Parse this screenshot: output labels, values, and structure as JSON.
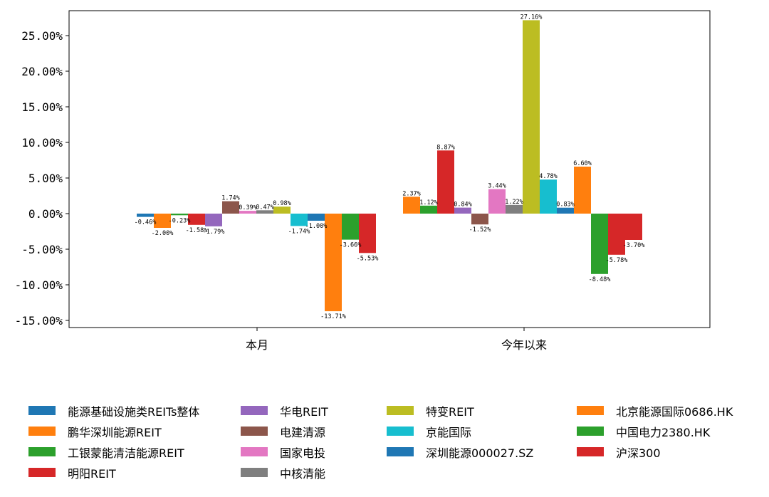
{
  "chart_data": {
    "type": "bar",
    "categories": [
      "本月",
      "今年以来"
    ],
    "ylim": [
      -0.16,
      0.285
    ],
    "yticks": [
      "-15.00%",
      "-10.00%",
      "-5.00%",
      "0.00%",
      "5.00%",
      "10.00%",
      "15.00%",
      "20.00%",
      "25.00%"
    ],
    "ytick_values": [
      -0.15,
      -0.1,
      -0.05,
      0.0,
      0.05,
      0.1,
      0.15,
      0.2,
      0.25
    ],
    "grid": false,
    "legend_placement": "bottom",
    "series": [
      {
        "name": "能源基础设施类REITs整体",
        "color": "#1f77b4",
        "values": [
          -0.0046,
          null
        ],
        "labels": [
          "-0.46%",
          ""
        ]
      },
      {
        "name": "鹏华深圳能源REIT",
        "color": "#ff7f0e",
        "values": [
          -0.02,
          0.0237
        ],
        "labels": [
          "-2.00%",
          "2.37%"
        ]
      },
      {
        "name": "工银蒙能清洁能源REIT",
        "color": "#2ca02c",
        "values": [
          -0.0023,
          0.0112
        ],
        "labels": [
          "-0.23%",
          "1.12%"
        ]
      },
      {
        "name": "明阳REIT",
        "color": "#d62728",
        "values": [
          -0.0158,
          0.0887
        ],
        "labels": [
          "-1.58%",
          "8.87%"
        ]
      },
      {
        "name": "华电REIT",
        "color": "#9467bd",
        "values": [
          -0.0179,
          0.0084
        ],
        "labels": [
          "-1.79%",
          "0.84%"
        ]
      },
      {
        "name": "电建清源",
        "color": "#8c564b",
        "values": [
          0.0174,
          -0.0152
        ],
        "labels": [
          "1.74%",
          "-1.52%"
        ]
      },
      {
        "name": "国家电投",
        "color": "#e377c2",
        "values": [
          0.0039,
          0.0344
        ],
        "labels": [
          "0.39%",
          "3.44%"
        ]
      },
      {
        "name": "中核清能",
        "color": "#7f7f7f",
        "values": [
          0.0047,
          0.0122
        ],
        "labels": [
          "0.47%",
          "1.22%"
        ]
      },
      {
        "name": "特变REIT",
        "color": "#bcbd22",
        "values": [
          0.0098,
          0.2716
        ],
        "labels": [
          "0.98%",
          "27.16%"
        ]
      },
      {
        "name": "京能国际",
        "color": "#17becf",
        "values": [
          -0.0174,
          0.0478
        ],
        "labels": [
          "-1.74%",
          "4.78%"
        ]
      },
      {
        "name": "深圳能源000027.SZ",
        "color": "#1f77b4",
        "values": [
          -0.01,
          0.0083
        ],
        "labels": [
          "-1.00%",
          "0.83%"
        ]
      },
      {
        "name": "北京能源国际0686.HK",
        "color": "#ff7f0e",
        "values": [
          -0.1371,
          0.066
        ],
        "labels": [
          "-13.71%",
          "6.60%"
        ]
      },
      {
        "name": "中国电力2380.HK",
        "color": "#2ca02c",
        "values": [
          -0.0366,
          -0.0848
        ],
        "labels": [
          "-3.66%",
          "-8.48%"
        ]
      },
      {
        "name": "沪深300",
        "color": "#d62728",
        "values": [
          -0.0553,
          -0.0578
        ],
        "labels": [
          "-5.53%",
          "-5.78%"
        ]
      }
    ],
    "extra_bar_today": {
      "color": "#d62728",
      "value": -0.037,
      "label": "-3.70%"
    }
  }
}
